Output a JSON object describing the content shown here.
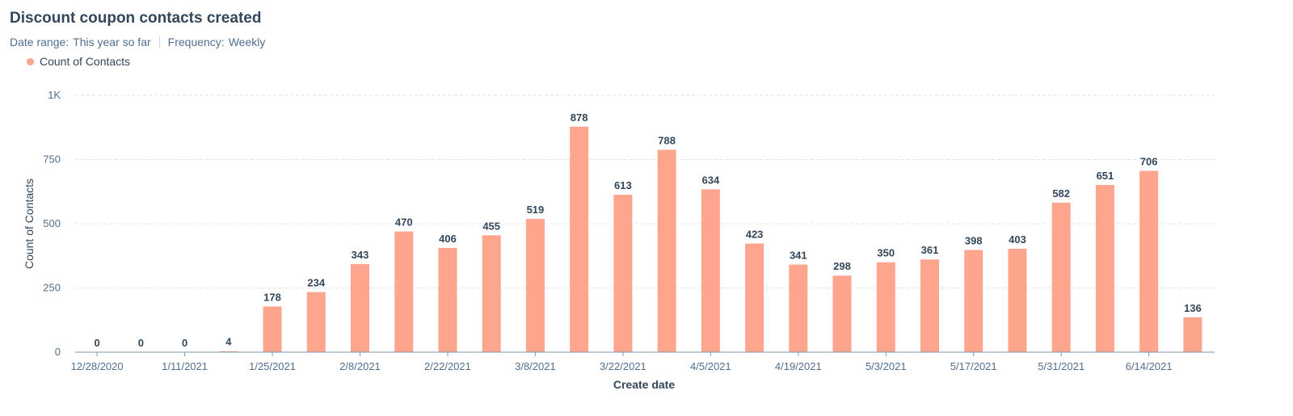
{
  "header": {
    "title": "Discount coupon contacts created",
    "date_range_label": "Date range:",
    "date_range_value": "This year so far",
    "frequency_label": "Frequency:",
    "frequency_value": "Weekly"
  },
  "colors": {
    "bar": "#fea58e",
    "grid": "#dfe3eb",
    "axis": "#7c98b6"
  },
  "chart_data": {
    "type": "bar",
    "title": "Discount coupon contacts created",
    "xlabel": "Create date",
    "ylabel": "Count of Contacts",
    "ylim": [
      0,
      1000
    ],
    "yticks": [
      {
        "value": 0,
        "label": "0"
      },
      {
        "value": 250,
        "label": "250"
      },
      {
        "value": 500,
        "label": "500"
      },
      {
        "value": 750,
        "label": "750"
      },
      {
        "value": 1000,
        "label": "1K"
      }
    ],
    "grid": true,
    "legend_position": "top-left",
    "categories": [
      "12/28/2020",
      "1/4/2021",
      "1/11/2021",
      "1/18/2021",
      "1/25/2021",
      "2/1/2021",
      "2/8/2021",
      "2/15/2021",
      "2/22/2021",
      "3/1/2021",
      "3/8/2021",
      "3/15/2021",
      "3/22/2021",
      "3/29/2021",
      "4/5/2021",
      "4/12/2021",
      "4/19/2021",
      "4/26/2021",
      "5/3/2021",
      "5/10/2021",
      "5/17/2021",
      "5/24/2021",
      "5/31/2021",
      "6/7/2021",
      "6/14/2021",
      "6/21/2021"
    ],
    "shown_tick_labels": [
      "12/28/2020",
      "1/11/2021",
      "1/25/2021",
      "2/8/2021",
      "2/22/2021",
      "3/8/2021",
      "3/22/2021",
      "4/5/2021",
      "4/19/2021",
      "5/3/2021",
      "5/17/2021",
      "5/31/2021",
      "6/14/2021"
    ],
    "series": [
      {
        "name": "Count of Contacts",
        "values": [
          0,
          0,
          0,
          4,
          178,
          234,
          343,
          470,
          406,
          455,
          519,
          878,
          613,
          788,
          634,
          423,
          341,
          298,
          350,
          361,
          398,
          403,
          582,
          651,
          706,
          136
        ]
      }
    ]
  }
}
